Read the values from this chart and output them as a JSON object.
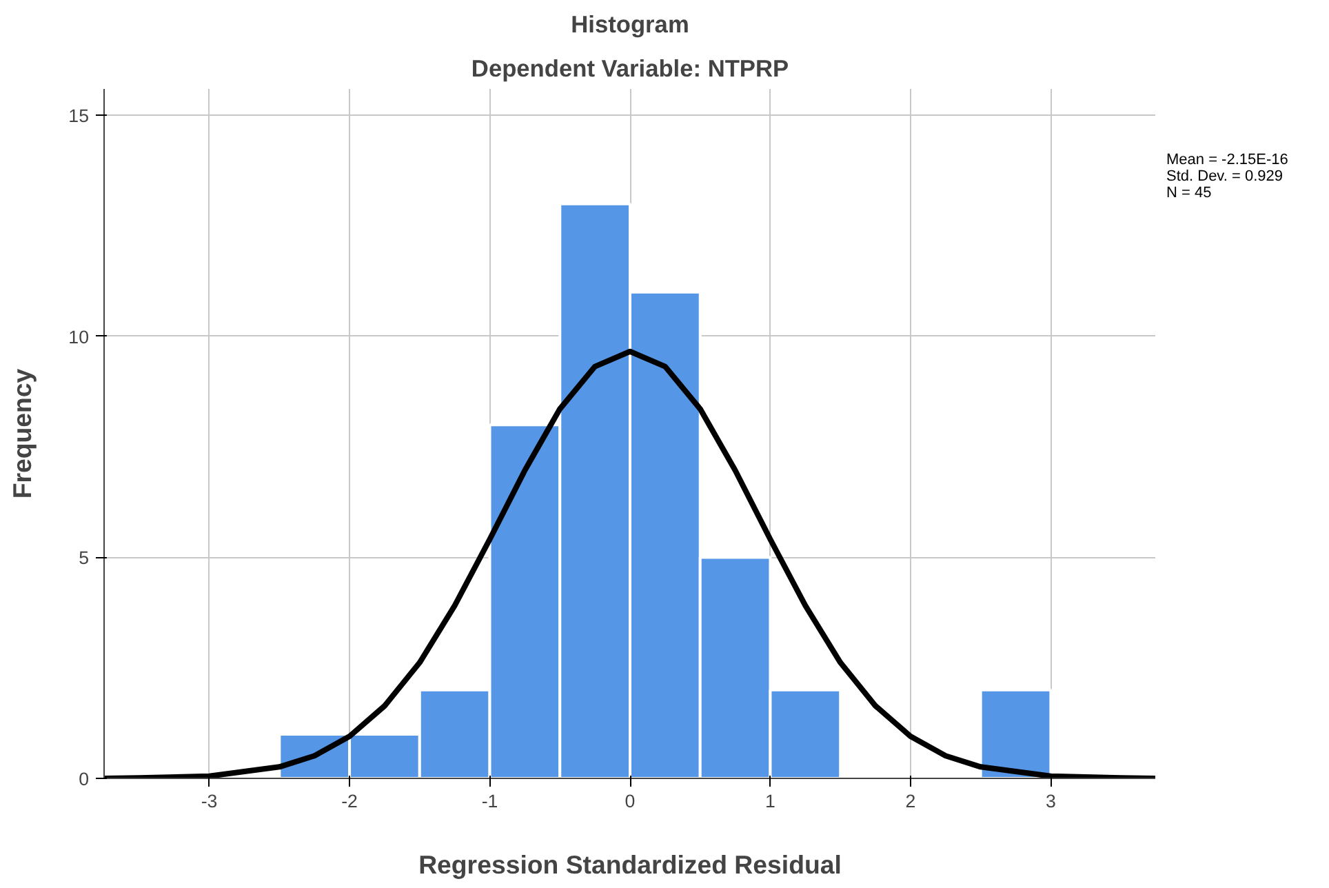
{
  "chart_data": {
    "type": "histogram",
    "title": "Histogram",
    "subtitle": "Dependent Variable: NTPRP",
    "xlabel": "Regression Standardized Residual",
    "ylabel": "Frequency",
    "bins": [
      -2.5,
      -2.0,
      -1.5,
      -1.0,
      -0.5,
      0.0,
      0.5,
      1.0,
      1.5,
      2.0,
      2.5,
      3.0
    ],
    "values": [
      1,
      1,
      2,
      8,
      13,
      11,
      5,
      2,
      0,
      0,
      2
    ],
    "color": "#5596e6",
    "series": [
      {
        "type": "line",
        "color": "#000000",
        "x": [
          -3.75,
          -3.5,
          -3.0,
          -2.5,
          -2.25,
          -2.0,
          -1.75,
          -1.5,
          -1.25,
          -1.0,
          -0.75,
          -0.5,
          -0.25,
          0.0,
          0.25,
          0.5,
          0.75,
          1.0,
          1.25,
          1.5,
          1.75,
          2.0,
          2.25,
          2.5,
          3.0,
          3.5,
          3.75
        ],
        "values": [
          0.0,
          0.01,
          0.05,
          0.26,
          0.51,
          0.95,
          1.64,
          2.62,
          3.91,
          5.41,
          6.97,
          8.36,
          9.32,
          9.66,
          9.32,
          8.36,
          6.97,
          5.41,
          3.91,
          2.62,
          1.64,
          0.95,
          0.51,
          0.26,
          0.05,
          0.01,
          0.0
        ]
      }
    ],
    "xlim": [
      -3.75,
      3.75
    ],
    "ylim": [
      0,
      15.6
    ],
    "xticks": [
      -3,
      -2,
      -1,
      0,
      1,
      2,
      3
    ],
    "yticks": [
      0,
      5,
      10,
      15
    ],
    "grid": true,
    "line_style": "solid",
    "marker": "none",
    "annotations": [
      "Mean = -2.15E-16",
      "Std. Dev. = 0.929",
      "N = 45"
    ]
  }
}
